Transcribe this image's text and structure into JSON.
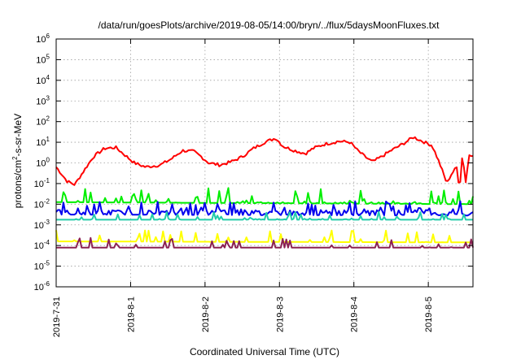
{
  "chart_data": {
    "type": "line",
    "title": "/data/run/goesPlots/archive/2019-08-05/14:00/bryn/../flux/5daysMoonFluxes.txt",
    "xlabel": "Coordinated Universal Time (UTC)",
    "ylabel": "protons/cm²-s-sr-MeV",
    "ylabel_base": "protons/cm",
    "ylabel_sup": "2",
    "ylabel_rest": "-s-sr-MeV",
    "yscale": "log",
    "ylim_exponent": [
      -6,
      6
    ],
    "y_tick_exponents": [
      -6,
      -5,
      -4,
      -3,
      -2,
      -1,
      0,
      1,
      2,
      3,
      4,
      5,
      6
    ],
    "y_tick_base": "10",
    "xlim_days": [
      0,
      5.6
    ],
    "x_ticks": [
      {
        "day": 0,
        "label": "2019-7-31"
      },
      {
        "day": 1,
        "label": "2019-8-1"
      },
      {
        "day": 2,
        "label": "2019-8-2"
      },
      {
        "day": 3,
        "label": "2019-8-3"
      },
      {
        "day": 4,
        "label": "2019-8-4"
      },
      {
        "day": 5,
        "label": "2019-8-5"
      }
    ],
    "grid": true,
    "series": [
      {
        "color": "#ff0000",
        "values": [
          [
            0,
            -0.2
          ],
          [
            0.15,
            -0.9
          ],
          [
            0.25,
            -1.05
          ],
          [
            0.35,
            -0.5
          ],
          [
            0.5,
            0.3
          ],
          [
            0.65,
            0.7
          ],
          [
            0.8,
            0.75
          ],
          [
            0.95,
            0.3
          ],
          [
            1.05,
            0.0
          ],
          [
            1.2,
            -0.2
          ],
          [
            1.4,
            -0.1
          ],
          [
            1.55,
            0.2
          ],
          [
            1.7,
            0.6
          ],
          [
            1.85,
            0.55
          ],
          [
            1.95,
            0.3
          ],
          [
            2.05,
            0.0
          ],
          [
            2.2,
            -0.1
          ],
          [
            2.35,
            0.05
          ],
          [
            2.5,
            0.3
          ],
          [
            2.65,
            0.7
          ],
          [
            2.8,
            1.0
          ],
          [
            2.95,
            1.2
          ],
          [
            3.05,
            0.8
          ],
          [
            3.2,
            0.6
          ],
          [
            3.35,
            0.45
          ],
          [
            3.45,
            0.7
          ],
          [
            3.6,
            0.9
          ],
          [
            3.8,
            1.05
          ],
          [
            3.95,
            1.0
          ],
          [
            4.05,
            0.6
          ],
          [
            4.15,
            0.3
          ],
          [
            4.25,
            0.05
          ],
          [
            4.35,
            0.25
          ],
          [
            4.5,
            0.6
          ],
          [
            4.65,
            0.9
          ],
          [
            4.8,
            1.25
          ],
          [
            4.95,
            1.0
          ],
          [
            5.05,
            0.85
          ],
          [
            5.15,
            0.0
          ],
          [
            5.25,
            -1.0
          ],
          [
            5.3,
            -0.6
          ],
          [
            5.38,
            -0.2
          ],
          [
            5.42,
            -1.3
          ],
          [
            5.46,
            0.5
          ],
          [
            5.5,
            -1.0
          ],
          [
            5.55,
            0.4
          ],
          [
            5.6,
            0.4
          ]
        ],
        "noise": 0.15,
        "spikes": 0
      },
      {
        "color": "#00ee00",
        "values": [
          [
            0,
            -1.9
          ],
          [
            5.6,
            -2.0
          ]
        ],
        "noise": 0.2,
        "spikes": 0.8,
        "baseline": -2.0
      },
      {
        "color": "#0000ee",
        "values": [
          [
            0,
            -2.5
          ],
          [
            5.6,
            -2.55
          ]
        ],
        "noise": 0.35,
        "spikes": 0.6,
        "baseline": -2.45
      },
      {
        "color": "#22ccaa",
        "values": [
          [
            0,
            -2.75
          ],
          [
            5.6,
            -2.75
          ]
        ],
        "noise": 0.3,
        "spikes": 0.5,
        "baseline": -2.85
      },
      {
        "color": "#ffff00",
        "values": [
          [
            0,
            -3.8
          ],
          [
            5.6,
            -3.85
          ]
        ],
        "noise": 0.25,
        "spikes": 0.7,
        "baseline": -3.95
      },
      {
        "color": "#8b2252",
        "values": [
          [
            0,
            -4.1
          ],
          [
            5.6,
            -4.1
          ]
        ],
        "noise": 0.2,
        "spikes": 0.6,
        "baseline": -4.2
      }
    ]
  }
}
